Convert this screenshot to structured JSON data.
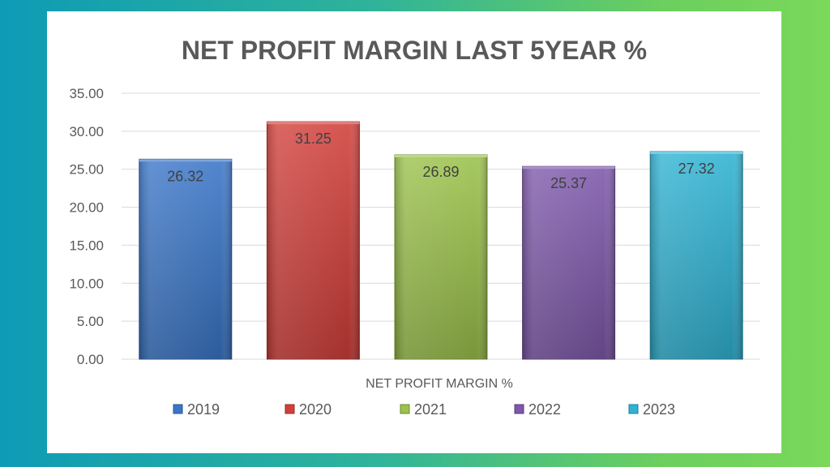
{
  "chart_data": {
    "type": "bar",
    "title": "NET PROFIT MARGIN LAST 5YEAR %",
    "xlabel": "NET PROFIT MARGIN %",
    "ylabel": "",
    "ylim": [
      0,
      35
    ],
    "yticks": [
      "35.00",
      "30.00",
      "25.00",
      "20.00",
      "15.00",
      "10.00",
      "5.00",
      "0.00"
    ],
    "grid": true,
    "legend_position": "bottom",
    "series": [
      {
        "name": "2019",
        "values": [
          26.32
        ],
        "label": "26.32",
        "color": "#3a76c8"
      },
      {
        "name": "2020",
        "values": [
          31.25
        ],
        "label": "31.25",
        "color": "#d23f3a"
      },
      {
        "name": "2021",
        "values": [
          26.89
        ],
        "label": "26.89",
        "color": "#9bc24a"
      },
      {
        "name": "2022",
        "values": [
          25.37
        ],
        "label": "25.37",
        "color": "#7e58ab"
      },
      {
        "name": "2023",
        "values": [
          27.32
        ],
        "label": "27.32",
        "color": "#2fb3d3"
      }
    ]
  }
}
